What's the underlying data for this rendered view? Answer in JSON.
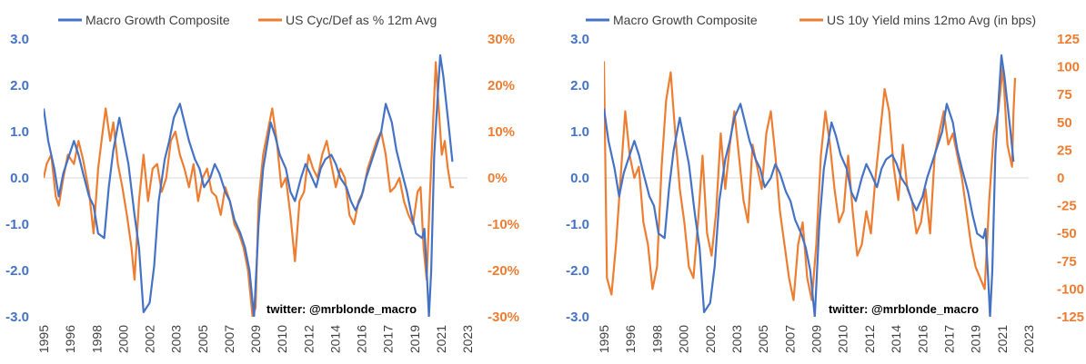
{
  "colors": {
    "growth": "#4472C4",
    "orange": "#ED7D31",
    "zero": "#D9D9D9"
  },
  "chart_data": [
    {
      "type": "line",
      "watermark": "twitter: @mrblonde_macro",
      "legend_position": "top",
      "x_ticks": [
        "1995",
        "1996",
        "1998",
        "2000",
        "2002",
        "2003",
        "2005",
        "2007",
        "2009",
        "2010",
        "2012",
        "2014",
        "2016",
        "2017",
        "2019",
        "2021",
        "2023"
      ],
      "x_range": [
        1995.0,
        2023.0
      ],
      "y_left": {
        "ticks": [
          "3.0",
          "2.0",
          "1.0",
          "0.0",
          "-1.0",
          "-2.0",
          "-3.0"
        ],
        "range": [
          -3,
          3
        ]
      },
      "y_right": {
        "ticks": [
          "30%",
          "20%",
          "10%",
          "0%",
          "-10%",
          "-20%",
          "-30%"
        ],
        "range": [
          -30,
          30
        ]
      },
      "series": [
        {
          "name": "Macro Growth Composite",
          "axis": "left",
          "x": [
            1995.0,
            1995.3,
            1995.7,
            1996.0,
            1996.3,
            1996.7,
            1997.0,
            1997.3,
            1997.6,
            1998.0,
            1998.3,
            1998.6,
            1999.0,
            1999.3,
            1999.6,
            2000.0,
            2000.3,
            2000.6,
            2001.0,
            2001.3,
            2001.6,
            2002.0,
            2002.3,
            2002.6,
            2003.0,
            2003.3,
            2003.6,
            2004.0,
            2004.3,
            2004.6,
            2005.0,
            2005.3,
            2005.6,
            2006.0,
            2006.3,
            2006.6,
            2007.0,
            2007.3,
            2007.6,
            2008.0,
            2008.3,
            2008.6,
            2008.9,
            2009.2,
            2009.5,
            2009.8,
            2010.0,
            2010.3,
            2010.6,
            2011.0,
            2011.3,
            2011.6,
            2012.0,
            2012.3,
            2012.6,
            2013.0,
            2013.3,
            2013.6,
            2014.0,
            2014.3,
            2014.6,
            2015.0,
            2015.3,
            2015.6,
            2016.0,
            2016.3,
            2016.6,
            2017.0,
            2017.3,
            2017.6,
            2018.0,
            2018.3,
            2018.6,
            2019.0,
            2019.3,
            2019.6,
            2020.0,
            2020.15,
            2020.3,
            2020.45,
            2020.6,
            2020.8,
            2021.0,
            2021.2,
            2021.4,
            2021.6,
            2021.8,
            2022.0
          ],
          "values": [
            1.5,
            0.8,
            0.2,
            -0.4,
            0.1,
            0.5,
            0.8,
            0.5,
            0.1,
            -0.4,
            -0.6,
            -1.2,
            -1.3,
            -0.2,
            0.6,
            1.3,
            0.8,
            0.3,
            -0.8,
            -1.5,
            -2.9,
            -2.7,
            -1.9,
            -0.5,
            0.4,
            0.8,
            1.3,
            1.6,
            1.2,
            0.8,
            0.4,
            0.2,
            -0.2,
            0.0,
            0.3,
            0.1,
            -0.3,
            -0.5,
            -0.9,
            -1.2,
            -1.5,
            -2.0,
            -3.0,
            -1.0,
            0.2,
            0.8,
            1.2,
            0.9,
            0.5,
            0.2,
            -0.3,
            -0.5,
            0.0,
            0.3,
            0.1,
            -0.2,
            0.2,
            0.4,
            0.5,
            0.3,
            0.0,
            -0.2,
            -0.5,
            -0.7,
            -0.4,
            0.0,
            0.3,
            0.7,
            1.0,
            1.6,
            1.2,
            0.6,
            0.2,
            -0.3,
            -0.8,
            -1.2,
            -1.3,
            -1.1,
            -2.0,
            -3.0,
            -2.0,
            0.5,
            1.6,
            2.65,
            2.2,
            1.6,
            1.0,
            0.35
          ]
        },
        {
          "name": "US Cyc/Def as % 12m Avg",
          "axis": "right",
          "x": [
            1995.0,
            1995.2,
            1995.5,
            1995.8,
            1996.0,
            1996.3,
            1996.6,
            1997.0,
            1997.3,
            1997.6,
            1998.0,
            1998.3,
            1998.6,
            1998.9,
            1999.1,
            1999.4,
            1999.6,
            1999.9,
            2000.2,
            2000.5,
            2000.8,
            2001.0,
            2001.3,
            2001.6,
            2001.9,
            2002.2,
            2002.5,
            2002.8,
            2003.1,
            2003.4,
            2003.7,
            2004.0,
            2004.3,
            2004.6,
            2004.9,
            2005.2,
            2005.5,
            2005.8,
            2006.1,
            2006.4,
            2006.7,
            2007.0,
            2007.3,
            2007.6,
            2007.9,
            2008.2,
            2008.5,
            2008.8,
            2009.0,
            2009.2,
            2009.5,
            2009.8,
            2010.1,
            2010.4,
            2010.7,
            2011.0,
            2011.3,
            2011.6,
            2011.9,
            2012.2,
            2012.5,
            2012.8,
            2013.1,
            2013.4,
            2013.7,
            2014.0,
            2014.3,
            2014.6,
            2014.9,
            2015.2,
            2015.5,
            2015.8,
            2016.1,
            2016.4,
            2016.7,
            2017.0,
            2017.3,
            2017.6,
            2017.9,
            2018.2,
            2018.5,
            2018.8,
            2019.1,
            2019.4,
            2019.7,
            2019.9,
            2020.1,
            2020.3,
            2020.5,
            2020.7,
            2020.9,
            2021.1,
            2021.3,
            2021.5,
            2021.7,
            2021.9,
            2022.1
          ],
          "values": [
            0,
            3,
            5,
            -4,
            -6,
            0,
            5,
            3,
            8,
            4,
            -3,
            -12,
            2,
            10,
            15,
            8,
            12,
            3,
            -2,
            -8,
            -15,
            -22,
            -5,
            5,
            -5,
            2,
            3,
            -3,
            0,
            8,
            10,
            5,
            2,
            -2,
            3,
            -5,
            0,
            2,
            -3,
            -4,
            -8,
            -2,
            -5,
            -10,
            -12,
            -15,
            -20,
            -30,
            -28,
            -5,
            5,
            10,
            15,
            8,
            -2,
            0,
            -8,
            -18,
            -5,
            -3,
            5,
            2,
            0,
            5,
            8,
            3,
            -2,
            2,
            0,
            -8,
            -10,
            -5,
            -3,
            2,
            5,
            8,
            10,
            5,
            -3,
            -2,
            0,
            -5,
            -8,
            -10,
            -3,
            -2,
            -15,
            -22,
            -5,
            10,
            25,
            15,
            5,
            8,
            2,
            -2,
            -2
          ]
        }
      ]
    },
    {
      "type": "line",
      "watermark": "twitter: @mrblonde_macro",
      "legend_position": "top",
      "x_ticks": [
        "1995",
        "1996",
        "1998",
        "2000",
        "2002",
        "2003",
        "2005",
        "2007",
        "2009",
        "2010",
        "2012",
        "2014",
        "2016",
        "2017",
        "2019",
        "2021",
        "2023"
      ],
      "x_range": [
        1995.0,
        2023.0
      ],
      "y_left": {
        "ticks": [
          "3.0",
          "2.0",
          "1.0",
          "0.0",
          "-1.0",
          "-2.0",
          "-3.0"
        ],
        "range": [
          -3,
          3
        ]
      },
      "y_right": {
        "ticks": [
          "125",
          "100",
          "75",
          "50",
          "25",
          "0",
          "-25",
          "-50",
          "-75",
          "-100",
          "-125"
        ],
        "range": [
          -125,
          125
        ]
      },
      "series": [
        {
          "name": "Macro Growth Composite",
          "axis": "left",
          "x": [
            1995.0,
            1995.3,
            1995.7,
            1996.0,
            1996.3,
            1996.7,
            1997.0,
            1997.3,
            1997.6,
            1998.0,
            1998.3,
            1998.6,
            1999.0,
            1999.3,
            1999.6,
            2000.0,
            2000.3,
            2000.6,
            2001.0,
            2001.3,
            2001.6,
            2002.0,
            2002.3,
            2002.6,
            2003.0,
            2003.3,
            2003.6,
            2004.0,
            2004.3,
            2004.6,
            2005.0,
            2005.3,
            2005.6,
            2006.0,
            2006.3,
            2006.6,
            2007.0,
            2007.3,
            2007.6,
            2008.0,
            2008.3,
            2008.6,
            2008.9,
            2009.2,
            2009.5,
            2009.8,
            2010.0,
            2010.3,
            2010.6,
            2011.0,
            2011.3,
            2011.6,
            2012.0,
            2012.3,
            2012.6,
            2013.0,
            2013.3,
            2013.6,
            2014.0,
            2014.3,
            2014.6,
            2015.0,
            2015.3,
            2015.6,
            2016.0,
            2016.3,
            2016.6,
            2017.0,
            2017.3,
            2017.6,
            2018.0,
            2018.3,
            2018.6,
            2019.0,
            2019.3,
            2019.6,
            2020.0,
            2020.15,
            2020.3,
            2020.45,
            2020.6,
            2020.8,
            2021.0,
            2021.2,
            2021.4,
            2021.6,
            2021.8,
            2022.0
          ],
          "values": [
            1.5,
            0.8,
            0.2,
            -0.4,
            0.1,
            0.5,
            0.8,
            0.5,
            0.1,
            -0.4,
            -0.6,
            -1.2,
            -1.3,
            -0.2,
            0.6,
            1.3,
            0.8,
            0.3,
            -0.8,
            -1.5,
            -2.9,
            -2.7,
            -1.9,
            -0.5,
            0.4,
            0.8,
            1.3,
            1.6,
            1.2,
            0.8,
            0.4,
            0.2,
            -0.2,
            0.0,
            0.3,
            0.1,
            -0.3,
            -0.5,
            -0.9,
            -1.2,
            -1.5,
            -2.0,
            -3.0,
            -1.0,
            0.2,
            0.8,
            1.2,
            0.9,
            0.5,
            0.2,
            -0.3,
            -0.5,
            0.0,
            0.3,
            0.1,
            -0.2,
            0.2,
            0.4,
            0.5,
            0.3,
            0.0,
            -0.2,
            -0.5,
            -0.7,
            -0.4,
            0.0,
            0.3,
            0.7,
            1.0,
            1.6,
            1.2,
            0.6,
            0.2,
            -0.3,
            -0.8,
            -1.2,
            -1.3,
            -1.1,
            -2.0,
            -3.0,
            -2.0,
            0.5,
            1.6,
            2.65,
            2.2,
            1.6,
            1.0,
            0.35
          ]
        },
        {
          "name": "US 10y Yield mins 12mo Avg (in bps)",
          "axis": "right",
          "x": [
            1995.0,
            1995.2,
            1995.5,
            1995.8,
            1996.1,
            1996.4,
            1996.7,
            1997.0,
            1997.3,
            1997.6,
            1997.9,
            1998.2,
            1998.5,
            1998.8,
            1999.1,
            1999.4,
            1999.7,
            2000.0,
            2000.3,
            2000.6,
            2000.9,
            2001.2,
            2001.5,
            2001.8,
            2002.1,
            2002.4,
            2002.7,
            2003.0,
            2003.3,
            2003.6,
            2003.9,
            2004.2,
            2004.5,
            2004.8,
            2005.1,
            2005.4,
            2005.7,
            2006.0,
            2006.3,
            2006.6,
            2006.9,
            2007.2,
            2007.5,
            2007.8,
            2008.1,
            2008.4,
            2008.7,
            2009.0,
            2009.3,
            2009.6,
            2009.9,
            2010.2,
            2010.5,
            2010.8,
            2011.1,
            2011.4,
            2011.7,
            2012.0,
            2012.3,
            2012.6,
            2012.9,
            2013.2,
            2013.5,
            2013.8,
            2014.1,
            2014.4,
            2014.7,
            2015.0,
            2015.3,
            2015.6,
            2015.9,
            2016.2,
            2016.5,
            2016.8,
            2017.1,
            2017.4,
            2017.7,
            2018.0,
            2018.3,
            2018.6,
            2018.9,
            2019.2,
            2019.5,
            2019.8,
            2020.1,
            2020.4,
            2020.7,
            2021.0,
            2021.3,
            2021.6,
            2021.9,
            2022.0,
            2022.1
          ],
          "values": [
            105,
            -90,
            -105,
            -60,
            0,
            60,
            20,
            0,
            10,
            -40,
            -60,
            -100,
            -80,
            10,
            70,
            95,
            40,
            -10,
            -40,
            -80,
            -90,
            -40,
            20,
            -50,
            -70,
            -30,
            40,
            -10,
            30,
            60,
            20,
            -20,
            -40,
            30,
            10,
            -10,
            40,
            60,
            20,
            -30,
            -60,
            -90,
            -110,
            -60,
            -40,
            -90,
            -110,
            -60,
            20,
            60,
            30,
            -10,
            -40,
            -30,
            20,
            -30,
            -70,
            -60,
            -30,
            -50,
            0,
            40,
            80,
            60,
            10,
            -20,
            30,
            -10,
            -20,
            -50,
            -40,
            -10,
            -50,
            20,
            40,
            60,
            30,
            40,
            20,
            0,
            -30,
            -60,
            -80,
            -90,
            -100,
            -20,
            40,
            60,
            100,
            30,
            10,
            60,
            90
          ]
        }
      ]
    }
  ]
}
